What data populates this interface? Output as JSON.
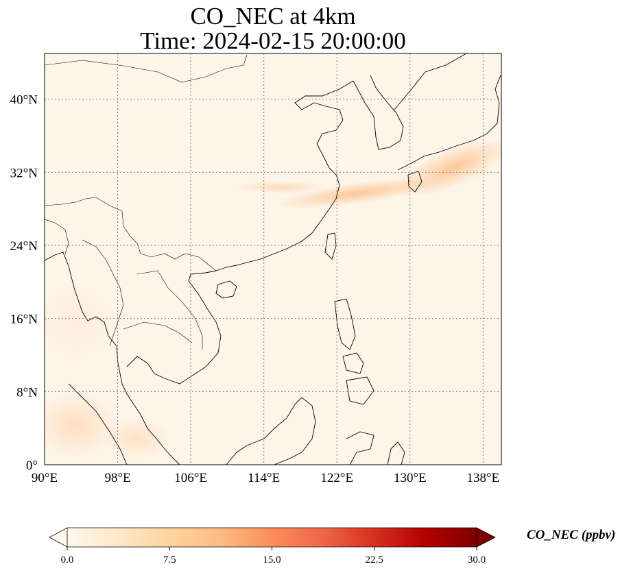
{
  "title": {
    "line1": "CO_NEC at 4km",
    "line2": "Time: 2024-02-15 20:00:00"
  },
  "map": {
    "projection": "PlateCarree",
    "lon_range": [
      90,
      140
    ],
    "lat_range": [
      0,
      45
    ],
    "x_ticks": [
      {
        "value": 90,
        "label": "90°E"
      },
      {
        "value": 98,
        "label": "98°E"
      },
      {
        "value": 106,
        "label": "106°E"
      },
      {
        "value": 114,
        "label": "114°E"
      },
      {
        "value": 122,
        "label": "122°E"
      },
      {
        "value": 130,
        "label": "130°E"
      },
      {
        "value": 138,
        "label": "138°E"
      }
    ],
    "y_ticks": [
      {
        "value": 0,
        "label": "0°"
      },
      {
        "value": 8,
        "label": "8°N"
      },
      {
        "value": 16,
        "label": "16°N"
      },
      {
        "value": 24,
        "label": "24°N"
      },
      {
        "value": 32,
        "label": "32°N"
      },
      {
        "value": 40,
        "label": "40°N"
      }
    ],
    "gridlines": "dotted gray",
    "background_color": "#fef5e9"
  },
  "colorbar": {
    "label": "CO_NEC (ppbv)",
    "colormap": "OrRd",
    "colors": [
      "#fff7ec",
      "#fee8c8",
      "#fdd49e",
      "#fdbb84",
      "#fc8d59",
      "#ef6548",
      "#d7301f",
      "#b30000",
      "#7f0000"
    ],
    "range": [
      0.0,
      30.0
    ],
    "ticks": [
      {
        "value": 0.0,
        "label": "0.0"
      },
      {
        "value": 7.5,
        "label": "7.5"
      },
      {
        "value": 15.0,
        "label": "15.0"
      },
      {
        "value": 22.5,
        "label": "22.5"
      },
      {
        "value": 30.0,
        "label": "30.0"
      }
    ],
    "extend": "both"
  }
}
